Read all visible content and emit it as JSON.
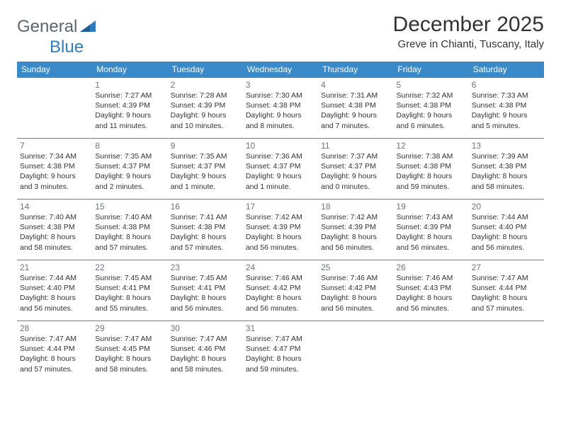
{
  "logo": {
    "text_general": "General",
    "text_blue": "Blue",
    "triangle_color": "#2f7bbf",
    "text_gray_color": "#5b6770"
  },
  "header": {
    "month_title": "December 2025",
    "location": "Greve in Chianti, Tuscany, Italy"
  },
  "colors": {
    "header_bg": "#3a8ac9",
    "header_text": "#ffffff",
    "divider": "#3a8ac9",
    "daynum": "#6b7680",
    "body_text": "#333333"
  },
  "daysOfWeek": [
    "Sunday",
    "Monday",
    "Tuesday",
    "Wednesday",
    "Thursday",
    "Friday",
    "Saturday"
  ],
  "weeks": [
    [
      null,
      {
        "n": "1",
        "sr": "7:27 AM",
        "ss": "4:39 PM",
        "dl": "9 hours and 11 minutes."
      },
      {
        "n": "2",
        "sr": "7:28 AM",
        "ss": "4:39 PM",
        "dl": "9 hours and 10 minutes."
      },
      {
        "n": "3",
        "sr": "7:30 AM",
        "ss": "4:38 PM",
        "dl": "9 hours and 8 minutes."
      },
      {
        "n": "4",
        "sr": "7:31 AM",
        "ss": "4:38 PM",
        "dl": "9 hours and 7 minutes."
      },
      {
        "n": "5",
        "sr": "7:32 AM",
        "ss": "4:38 PM",
        "dl": "9 hours and 6 minutes."
      },
      {
        "n": "6",
        "sr": "7:33 AM",
        "ss": "4:38 PM",
        "dl": "9 hours and 5 minutes."
      }
    ],
    [
      {
        "n": "7",
        "sr": "7:34 AM",
        "ss": "4:38 PM",
        "dl": "9 hours and 3 minutes."
      },
      {
        "n": "8",
        "sr": "7:35 AM",
        "ss": "4:37 PM",
        "dl": "9 hours and 2 minutes."
      },
      {
        "n": "9",
        "sr": "7:35 AM",
        "ss": "4:37 PM",
        "dl": "9 hours and 1 minute."
      },
      {
        "n": "10",
        "sr": "7:36 AM",
        "ss": "4:37 PM",
        "dl": "9 hours and 1 minute."
      },
      {
        "n": "11",
        "sr": "7:37 AM",
        "ss": "4:37 PM",
        "dl": "9 hours and 0 minutes."
      },
      {
        "n": "12",
        "sr": "7:38 AM",
        "ss": "4:38 PM",
        "dl": "8 hours and 59 minutes."
      },
      {
        "n": "13",
        "sr": "7:39 AM",
        "ss": "4:38 PM",
        "dl": "8 hours and 58 minutes."
      }
    ],
    [
      {
        "n": "14",
        "sr": "7:40 AM",
        "ss": "4:38 PM",
        "dl": "8 hours and 58 minutes."
      },
      {
        "n": "15",
        "sr": "7:40 AM",
        "ss": "4:38 PM",
        "dl": "8 hours and 57 minutes."
      },
      {
        "n": "16",
        "sr": "7:41 AM",
        "ss": "4:38 PM",
        "dl": "8 hours and 57 minutes."
      },
      {
        "n": "17",
        "sr": "7:42 AM",
        "ss": "4:39 PM",
        "dl": "8 hours and 56 minutes."
      },
      {
        "n": "18",
        "sr": "7:42 AM",
        "ss": "4:39 PM",
        "dl": "8 hours and 56 minutes."
      },
      {
        "n": "19",
        "sr": "7:43 AM",
        "ss": "4:39 PM",
        "dl": "8 hours and 56 minutes."
      },
      {
        "n": "20",
        "sr": "7:44 AM",
        "ss": "4:40 PM",
        "dl": "8 hours and 56 minutes."
      }
    ],
    [
      {
        "n": "21",
        "sr": "7:44 AM",
        "ss": "4:40 PM",
        "dl": "8 hours and 56 minutes."
      },
      {
        "n": "22",
        "sr": "7:45 AM",
        "ss": "4:41 PM",
        "dl": "8 hours and 55 minutes."
      },
      {
        "n": "23",
        "sr": "7:45 AM",
        "ss": "4:41 PM",
        "dl": "8 hours and 56 minutes."
      },
      {
        "n": "24",
        "sr": "7:46 AM",
        "ss": "4:42 PM",
        "dl": "8 hours and 56 minutes."
      },
      {
        "n": "25",
        "sr": "7:46 AM",
        "ss": "4:42 PM",
        "dl": "8 hours and 56 minutes."
      },
      {
        "n": "26",
        "sr": "7:46 AM",
        "ss": "4:43 PM",
        "dl": "8 hours and 56 minutes."
      },
      {
        "n": "27",
        "sr": "7:47 AM",
        "ss": "4:44 PM",
        "dl": "8 hours and 57 minutes."
      }
    ],
    [
      {
        "n": "28",
        "sr": "7:47 AM",
        "ss": "4:44 PM",
        "dl": "8 hours and 57 minutes."
      },
      {
        "n": "29",
        "sr": "7:47 AM",
        "ss": "4:45 PM",
        "dl": "8 hours and 58 minutes."
      },
      {
        "n": "30",
        "sr": "7:47 AM",
        "ss": "4:46 PM",
        "dl": "8 hours and 58 minutes."
      },
      {
        "n": "31",
        "sr": "7:47 AM",
        "ss": "4:47 PM",
        "dl": "8 hours and 59 minutes."
      },
      null,
      null,
      null
    ]
  ],
  "labels": {
    "sunrise_prefix": "Sunrise: ",
    "sunset_prefix": "Sunset: ",
    "daylight_prefix": "Daylight: "
  }
}
